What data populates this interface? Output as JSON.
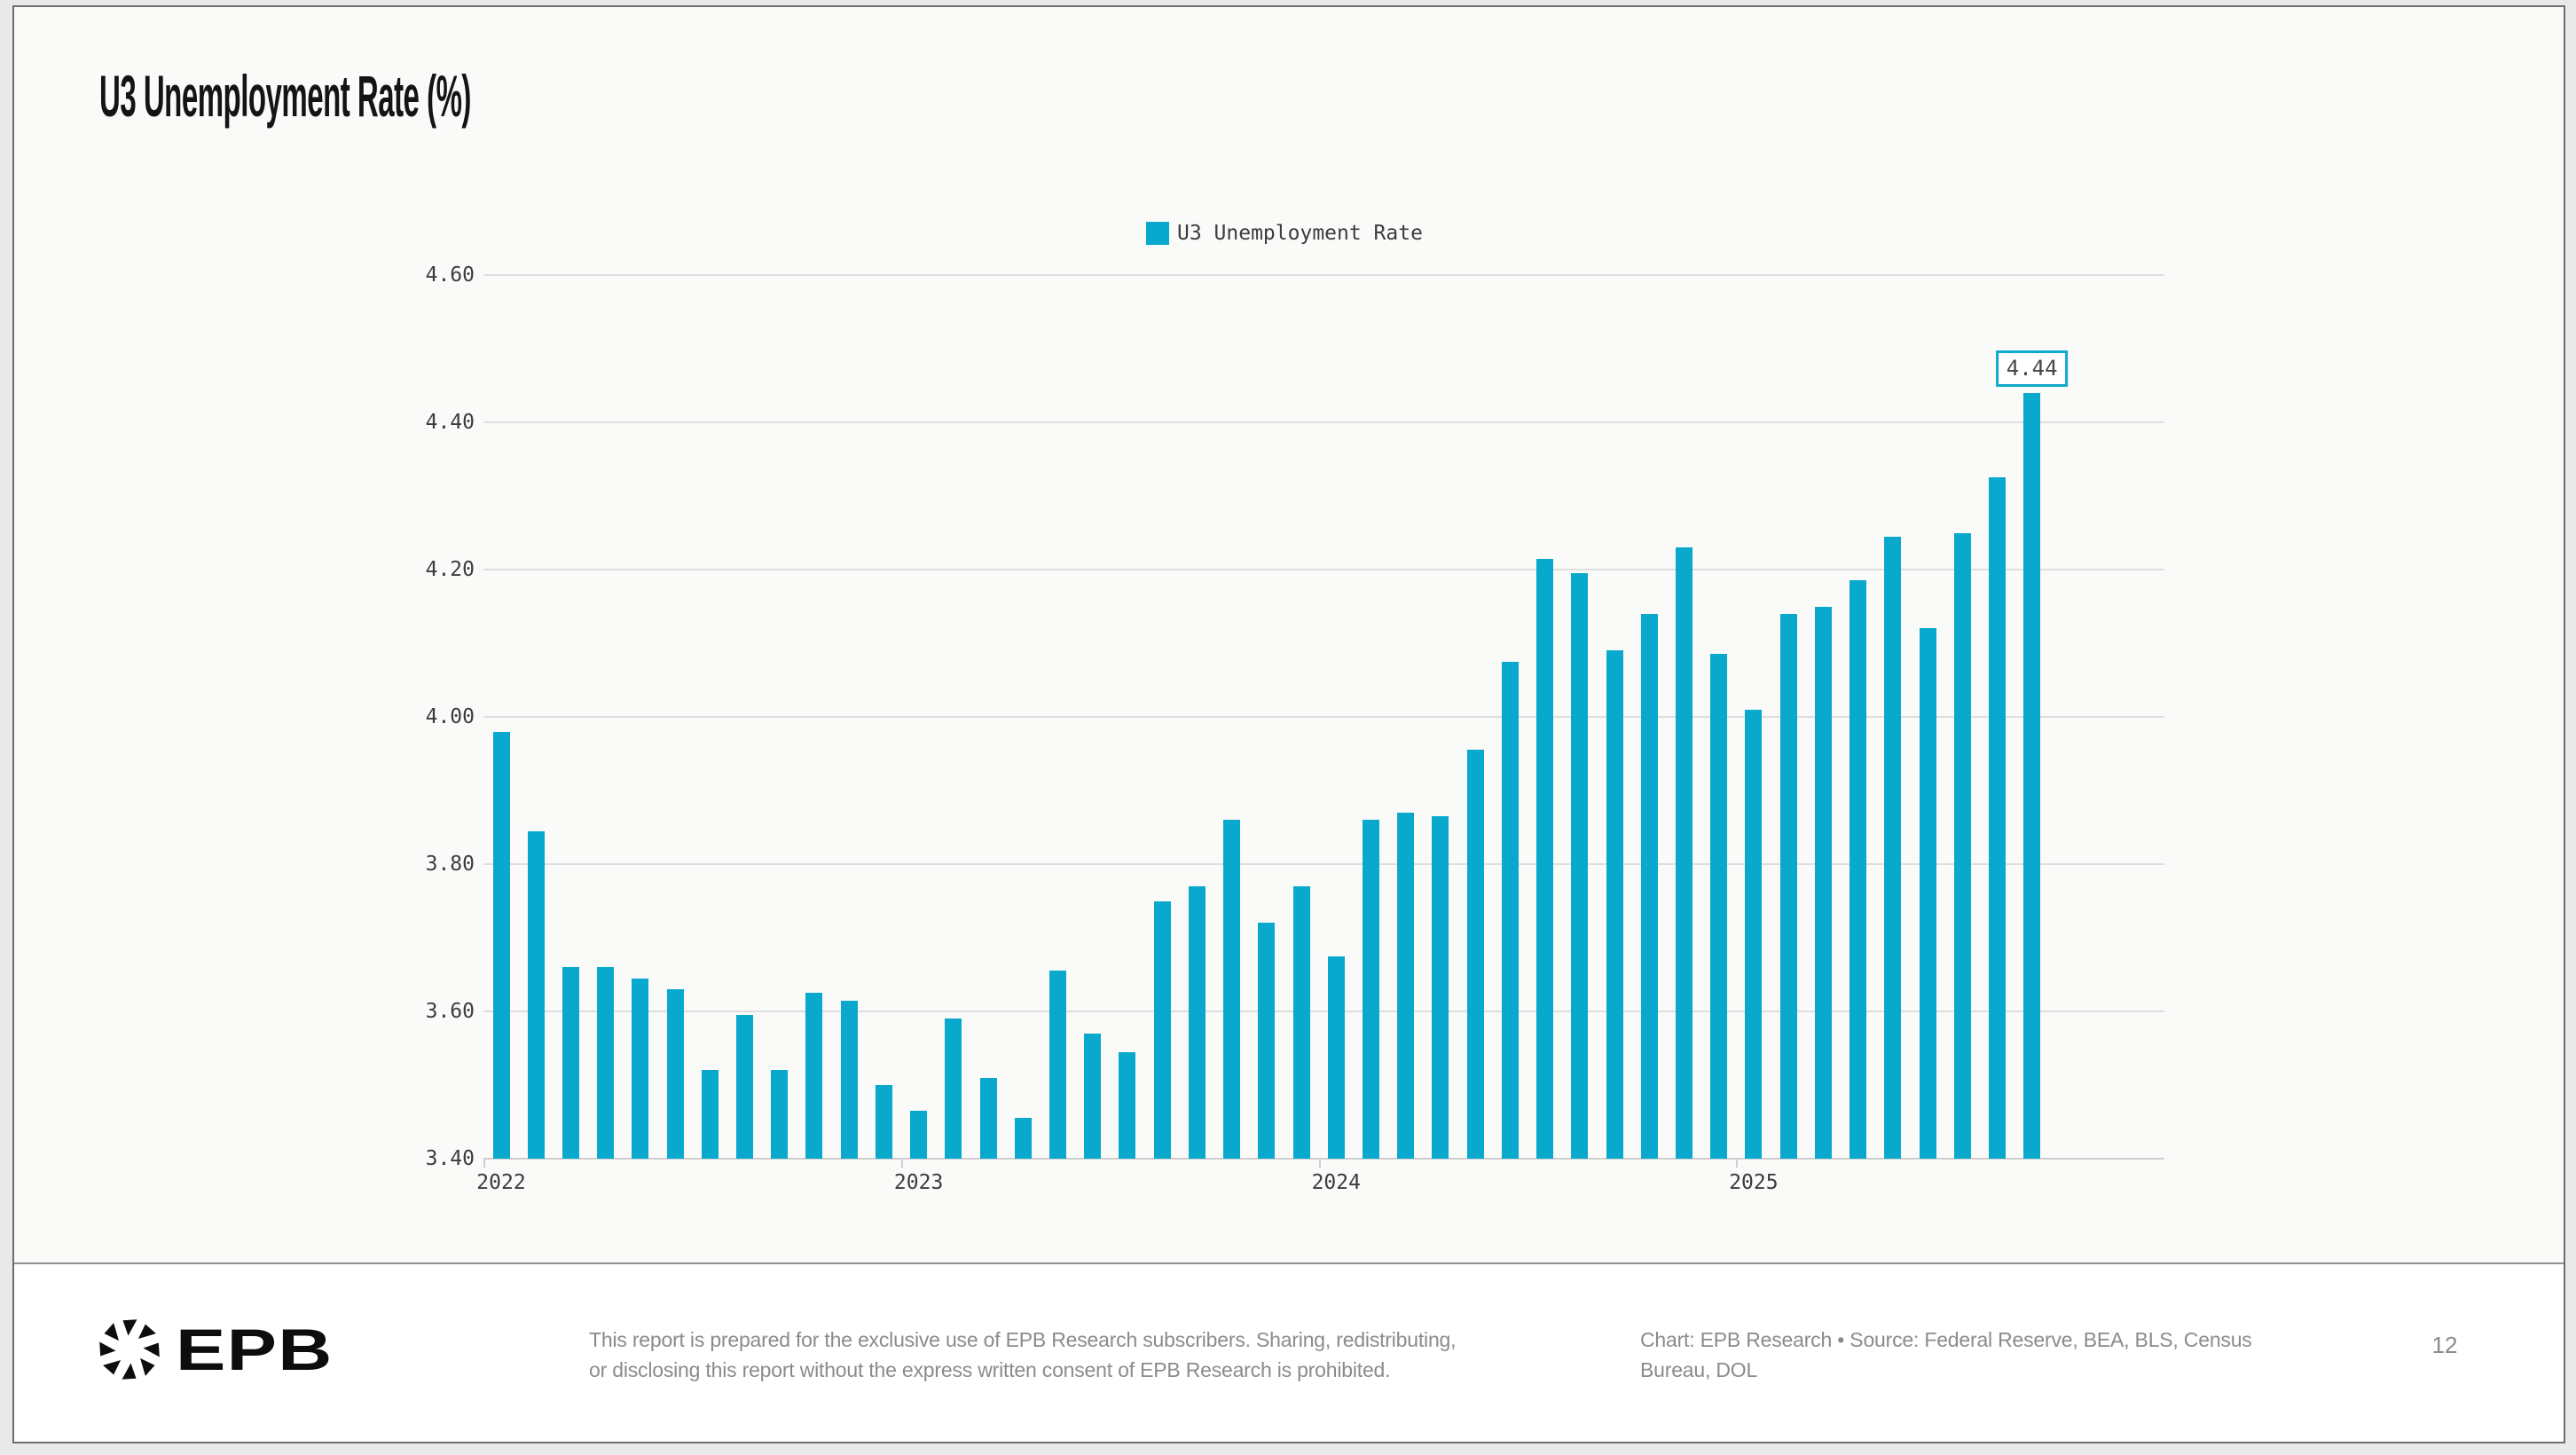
{
  "page": {
    "title": "U3 Unemployment Rate (%)",
    "page_number": "12"
  },
  "chart_data": {
    "type": "bar",
    "title": "U3 Unemployment Rate (%)",
    "legend_label": "U3 Unemployment Rate",
    "legend_position": "top-center",
    "grid": "horizontal",
    "bar_color": "#09a9ce",
    "ylim": [
      3.4,
      4.6
    ],
    "yticks": [
      3.4,
      3.6,
      3.8,
      4.0,
      4.2,
      4.4,
      4.6
    ],
    "ytick_labels": [
      "3.40",
      "3.60",
      "3.80",
      "4.00",
      "4.20",
      "4.40",
      "4.60"
    ],
    "x_year_labels": [
      "2022",
      "2023",
      "2024",
      "2025"
    ],
    "months": [
      "Jan 2022",
      "Feb 2022",
      "Mar 2022",
      "Apr 2022",
      "May 2022",
      "Jun 2022",
      "Jul 2022",
      "Aug 2022",
      "Sep 2022",
      "Oct 2022",
      "Nov 2022",
      "Dec 2022",
      "Jan 2023",
      "Feb 2023",
      "Mar 2023",
      "Apr 2023",
      "May 2023",
      "Jun 2023",
      "Jul 2023",
      "Aug 2023",
      "Sep 2023",
      "Oct 2023",
      "Nov 2023",
      "Dec 2023",
      "Jan 2024",
      "Feb 2024",
      "Mar 2024",
      "Apr 2024",
      "May 2024",
      "Jun 2024",
      "Jul 2024",
      "Aug 2024",
      "Sep 2024",
      "Oct 2024",
      "Nov 2024",
      "Dec 2024",
      "Jan 2025",
      "Feb 2025",
      "Mar 2025",
      "Apr 2025",
      "May 2025",
      "Jun 2025",
      "Jul 2025",
      "Aug 2025",
      "Sep 2025"
    ],
    "values": [
      3.98,
      3.845,
      3.66,
      3.66,
      3.645,
      3.63,
      3.52,
      3.595,
      3.52,
      3.625,
      3.615,
      3.5,
      3.465,
      3.59,
      3.51,
      3.455,
      3.655,
      3.57,
      3.545,
      3.75,
      3.77,
      3.86,
      3.72,
      3.77,
      3.675,
      3.86,
      3.87,
      3.865,
      3.955,
      4.075,
      4.215,
      4.195,
      4.09,
      4.14,
      4.23,
      4.085,
      4.01,
      4.14,
      4.15,
      4.185,
      4.245,
      4.12,
      4.25,
      4.325,
      4.44
    ],
    "annotation": {
      "text": "4.44",
      "month": "Sep 2025"
    }
  },
  "footer": {
    "logo_text": "EPB",
    "logo_icon": "shutter-icon",
    "disclaimer_lines": [
      "This report is prepared for the exclusive use of EPB Research subscribers. Sharing, redistributing,",
      "or disclosing this report without the express written consent of EPB Research is prohibited."
    ],
    "source_lines": [
      "Chart: EPB Research  •  Source: Federal Reserve, BEA, BLS, Census",
      "Bureau, DOL"
    ]
  },
  "colors": {
    "bar": "#09a9ce",
    "annotation_border": "#0fa8cf",
    "page_background": "#fafaf9",
    "outer_background": "#e9e9e9",
    "footer_background": "#ffffff",
    "gridline": "#dedede",
    "axis_text": "#3c3c3c",
    "footer_text": "#8b8b8b"
  }
}
